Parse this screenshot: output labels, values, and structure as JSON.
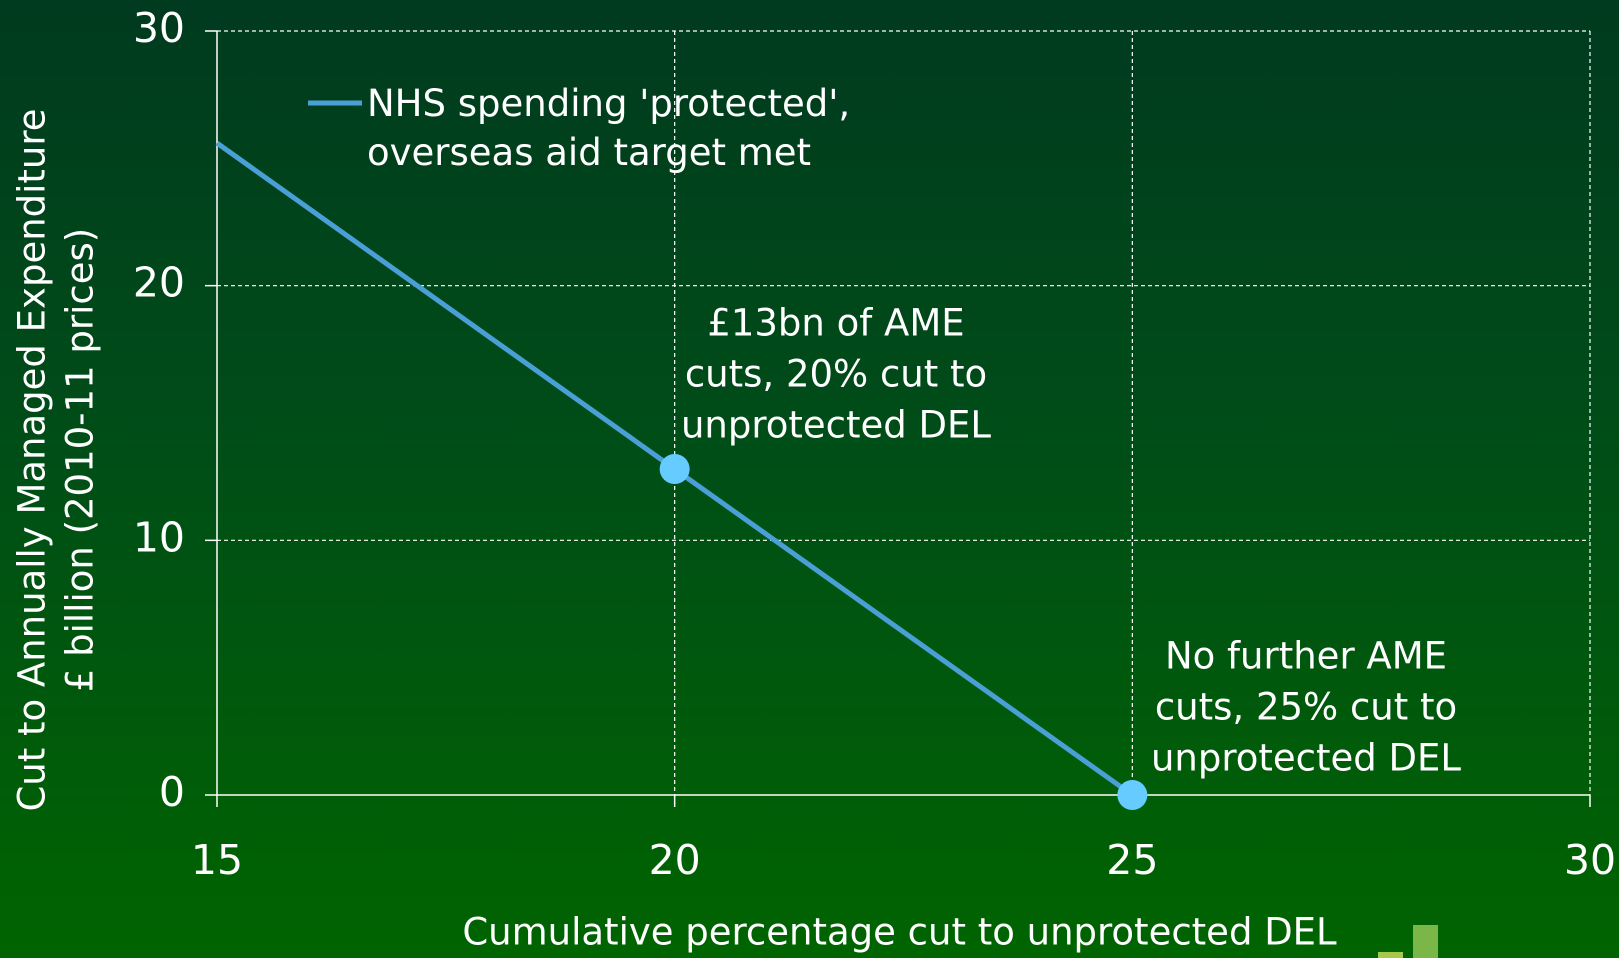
{
  "chart_data": {
    "type": "line",
    "xlabel": "Cumulative percentage cut to unprotected DEL",
    "ylabel": [
      "Cut to Annually Managed Expenditure",
      "£ billion (2010-11 prices)"
    ],
    "x": [
      15,
      20,
      25
    ],
    "series": [
      {
        "name": "NHS spending 'protected', overseas aid target met",
        "color": "#4a9fd6",
        "marker_color": "#66ccff",
        "values": [
          25.6,
          12.8,
          0
        ],
        "marker_indices": [
          1,
          2
        ]
      }
    ],
    "annotations": [
      [
        "£13bn of AME",
        "cuts, 20% cut to",
        "unprotected DEL"
      ],
      [
        "No further AME",
        "cuts, 25% cut to",
        "unprotected DEL"
      ]
    ],
    "xlim": [
      15,
      30
    ],
    "xticks": [
      15,
      20,
      25,
      30
    ],
    "ylim": [
      0,
      30
    ],
    "yticks": [
      0,
      10,
      20,
      30
    ],
    "grid": true
  }
}
